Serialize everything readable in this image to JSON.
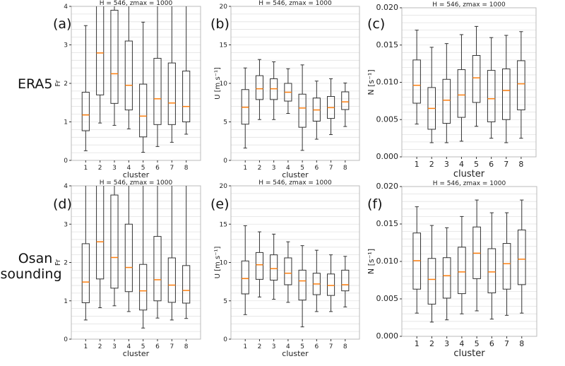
{
  "row_labels": [
    "ERA5",
    "Osan",
    "sounding"
  ],
  "colors": {
    "box": "#333333",
    "median": "#ff7f0e",
    "grid": "#e2e2e2",
    "frame": "#bbbbbb"
  },
  "chart_data": [
    {
      "panel": "(a)",
      "type": "box",
      "title": "H = 546, zmax = 1000",
      "xlabel": "cluster",
      "ylabel": "Fr",
      "ylim": [
        0,
        4
      ],
      "yticks": [
        "0",
        "1",
        "2",
        "3",
        "4"
      ],
      "ytick_values": [
        0,
        1,
        2,
        3,
        4
      ],
      "minor_step": 0.2,
      "categories": [
        "1",
        "2",
        "3",
        "4",
        "5",
        "6",
        "7",
        "8"
      ],
      "boxes": [
        {
          "low": 0.25,
          "q1": 0.77,
          "median": 1.18,
          "q3": 1.77,
          "high": 3.5
        },
        {
          "low": 0.97,
          "q1": 1.7,
          "median": 2.79,
          "q3": null,
          "high": null
        },
        {
          "low": 0.91,
          "q1": 1.48,
          "median": 2.25,
          "q3": 3.9,
          "high": null
        },
        {
          "low": 0.82,
          "q1": 1.31,
          "median": 1.95,
          "q3": 3.1,
          "high": null
        },
        {
          "low": 0.21,
          "q1": 0.61,
          "median": 1.15,
          "q3": 1.98,
          "high": 3.59
        },
        {
          "low": 0.36,
          "q1": 0.93,
          "median": 1.6,
          "q3": 2.65,
          "high": null
        },
        {
          "low": 0.47,
          "q1": 0.93,
          "median": 1.49,
          "q3": 2.53,
          "high": null
        },
        {
          "low": 0.68,
          "q1": 1.0,
          "median": 1.4,
          "q3": 2.32,
          "high": null
        }
      ]
    },
    {
      "panel": "(b)",
      "type": "box",
      "title": "H = 546, zmax = 1000",
      "xlabel": "cluster",
      "ylabel": "U [m s⁻¹]",
      "ylim": [
        0,
        20
      ],
      "yticks": [
        "0",
        "5",
        "10",
        "15",
        "20"
      ],
      "ytick_values": [
        0,
        5,
        10,
        15,
        20
      ],
      "minor_step": 1,
      "categories": [
        "1",
        "2",
        "3",
        "4",
        "5",
        "6",
        "7",
        "8"
      ],
      "boxes": [
        {
          "low": 1.6,
          "q1": 4.7,
          "median": 6.9,
          "q3": 9.2,
          "high": 12.0
        },
        {
          "low": 5.3,
          "q1": 7.9,
          "median": 9.3,
          "q3": 11.0,
          "high": 13.1
        },
        {
          "low": 5.3,
          "q1": 7.9,
          "median": 9.3,
          "q3": 10.6,
          "high": 12.8
        },
        {
          "low": 6.1,
          "q1": 7.7,
          "median": 8.85,
          "q3": 10.0,
          "high": 11.9
        },
        {
          "low": 1.3,
          "q1": 4.3,
          "median": 6.8,
          "q3": 8.6,
          "high": 12.4
        },
        {
          "low": 2.75,
          "q1": 5.1,
          "median": 6.55,
          "q3": 8.1,
          "high": 10.3
        },
        {
          "low": 3.35,
          "q1": 5.45,
          "median": 6.85,
          "q3": 8.3,
          "high": 10.6
        },
        {
          "low": 4.4,
          "q1": 6.6,
          "median": 7.6,
          "q3": 8.9,
          "high": 10.05
        }
      ]
    },
    {
      "panel": "(c)",
      "type": "box",
      "title": "H = 546, zmax = 1000",
      "xlabel": "cluster",
      "ylabel": "N [s⁻¹]",
      "ylim": [
        0,
        0.02
      ],
      "yticks": [
        "0.000",
        "0.005",
        "0.010",
        "0.015",
        "0.020"
      ],
      "ytick_values": [
        0,
        0.005,
        0.01,
        0.015,
        0.02
      ],
      "minor_step": 0.001,
      "categories": [
        "1",
        "2",
        "3",
        "4",
        "5",
        "6",
        "7",
        "8"
      ],
      "boxes": [
        {
          "low": 0.0044,
          "q1": 0.0072,
          "median": 0.0096,
          "q3": 0.013,
          "high": 0.017
        },
        {
          "low": 0.0019,
          "q1": 0.0037,
          "median": 0.0065,
          "q3": 0.0093,
          "high": 0.0147
        },
        {
          "low": 0.0019,
          "q1": 0.0045,
          "median": 0.0076,
          "q3": 0.0104,
          "high": 0.0152
        },
        {
          "low": 0.0021,
          "q1": 0.0053,
          "median": 0.0083,
          "q3": 0.0117,
          "high": 0.0164
        },
        {
          "low": 0.0041,
          "q1": 0.0073,
          "median": 0.0106,
          "q3": 0.0136,
          "high": 0.0175
        },
        {
          "low": 0.0025,
          "q1": 0.0047,
          "median": 0.0078,
          "q3": 0.0116,
          "high": 0.016
        },
        {
          "low": 0.0019,
          "q1": 0.005,
          "median": 0.0089,
          "q3": 0.0118,
          "high": 0.0163
        },
        {
          "low": 0.0025,
          "q1": 0.0063,
          "median": 0.0098,
          "q3": 0.0129,
          "high": 0.0168
        }
      ]
    },
    {
      "panel": "(d)",
      "type": "box",
      "title": "H = 546, zmax = 1000",
      "xlabel": "cluster",
      "ylabel": "Fr",
      "ylim": [
        0,
        4
      ],
      "yticks": [
        "0",
        "1",
        "2",
        "3",
        "4"
      ],
      "ytick_values": [
        0,
        1,
        2,
        3,
        4
      ],
      "minor_step": 0.2,
      "categories": [
        "1",
        "2",
        "3",
        "4",
        "5",
        "6",
        "7",
        "8"
      ],
      "boxes": [
        {
          "low": 0.5,
          "q1": 0.95,
          "median": 1.49,
          "q3": 2.49,
          "high": null
        },
        {
          "low": 0.82,
          "q1": 1.57,
          "median": 2.54,
          "q3": null,
          "high": null
        },
        {
          "low": 0.87,
          "q1": 1.33,
          "median": 2.13,
          "q3": 3.76,
          "high": null
        },
        {
          "low": 0.72,
          "q1": 1.24,
          "median": 1.87,
          "q3": 3.0,
          "high": null
        },
        {
          "low": 0.29,
          "q1": 0.76,
          "median": 1.26,
          "q3": 1.95,
          "high": null
        },
        {
          "low": 0.55,
          "q1": 1.0,
          "median": 1.55,
          "q3": 2.68,
          "high": null
        },
        {
          "low": 0.5,
          "q1": 0.96,
          "median": 1.41,
          "q3": 2.12,
          "high": null
        },
        {
          "low": 0.54,
          "q1": 0.94,
          "median": 1.27,
          "q3": 1.92,
          "high": null
        }
      ]
    },
    {
      "panel": "(e)",
      "type": "box",
      "title": "H = 546, zmax = 1000",
      "xlabel": "cluster",
      "ylabel": "U [m s⁻¹]",
      "ylim": [
        0,
        20
      ],
      "yticks": [
        "0",
        "5",
        "10",
        "15",
        "20"
      ],
      "ytick_values": [
        0,
        5,
        10,
        15,
        20
      ],
      "minor_step": 1,
      "categories": [
        "1",
        "2",
        "3",
        "4",
        "5",
        "6",
        "7",
        "8"
      ],
      "boxes": [
        {
          "low": 3.2,
          "q1": 5.9,
          "median": 7.9,
          "q3": 10.2,
          "high": 14.8
        },
        {
          "low": 5.5,
          "q1": 7.8,
          "median": 9.7,
          "q3": 11.3,
          "high": 14.0
        },
        {
          "low": 5.2,
          "q1": 7.7,
          "median": 9.2,
          "q3": 11.0,
          "high": 13.7
        },
        {
          "low": 4.8,
          "q1": 7.1,
          "median": 8.6,
          "q3": 10.6,
          "high": 12.7
        },
        {
          "low": 1.6,
          "q1": 5.1,
          "median": 7.6,
          "q3": 9.0,
          "high": 12.2
        },
        {
          "low": 3.6,
          "q1": 5.8,
          "median": 7.2,
          "q3": 8.6,
          "high": 11.6
        },
        {
          "low": 3.6,
          "q1": 5.7,
          "median": 7.0,
          "q3": 8.5,
          "high": 11.0
        },
        {
          "low": 4.2,
          "q1": 6.3,
          "median": 7.1,
          "q3": 9.0,
          "high": 10.8
        }
      ]
    },
    {
      "panel": "(f)",
      "type": "box",
      "title": "H = 546, zmax = 1000",
      "xlabel": "cluster",
      "ylabel": "N [s⁻¹]",
      "ylim": [
        0,
        0.02
      ],
      "yticks": [
        "0.000",
        "0.005",
        "0.010",
        "0.015",
        "0.020"
      ],
      "ytick_values": [
        0,
        0.005,
        0.01,
        0.015,
        0.02
      ],
      "minor_step": 0.001,
      "categories": [
        "1",
        "2",
        "3",
        "4",
        "5",
        "6",
        "7",
        "8"
      ],
      "boxes": [
        {
          "low": 0.0031,
          "q1": 0.0063,
          "median": 0.0101,
          "q3": 0.0138,
          "high": 0.0173
        },
        {
          "low": 0.0019,
          "q1": 0.0043,
          "median": 0.0076,
          "q3": 0.0104,
          "high": 0.0148
        },
        {
          "low": 0.0022,
          "q1": 0.0051,
          "median": 0.0081,
          "q3": 0.0105,
          "high": 0.0145
        },
        {
          "low": 0.003,
          "q1": 0.0057,
          "median": 0.0086,
          "q3": 0.0119,
          "high": 0.016
        },
        {
          "low": 0.0034,
          "q1": 0.0077,
          "median": 0.0111,
          "q3": 0.0146,
          "high": 0.0182
        },
        {
          "low": 0.0023,
          "q1": 0.0058,
          "median": 0.0086,
          "q3": 0.0117,
          "high": 0.0165
        },
        {
          "low": 0.0028,
          "q1": 0.0063,
          "median": 0.0097,
          "q3": 0.0124,
          "high": 0.0165
        },
        {
          "low": 0.0031,
          "q1": 0.0069,
          "median": 0.0103,
          "q3": 0.0142,
          "high": 0.0182
        }
      ]
    }
  ]
}
